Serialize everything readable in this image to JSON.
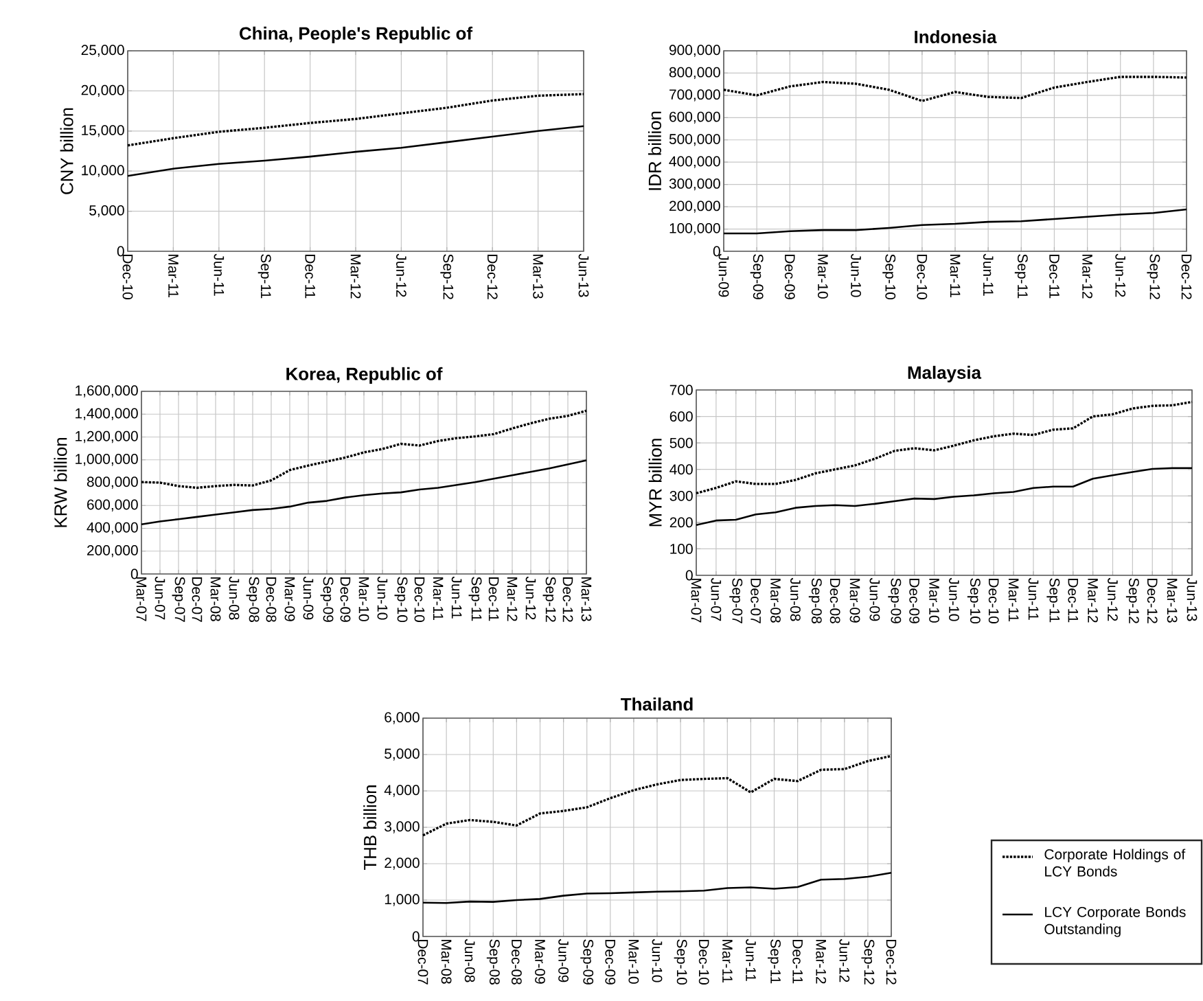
{
  "chart_data": [
    {
      "type": "line",
      "title": "China, People's Republic of",
      "ylabel": "CNY billion",
      "categories": [
        "Dec-10",
        "Mar-11",
        "Jun-11",
        "Sep-11",
        "Dec-11",
        "Mar-12",
        "Jun-12",
        "Sep-12",
        "Dec-12",
        "Mar-13",
        "Jun-13"
      ],
      "ylim": [
        0,
        25000
      ],
      "yticks": [
        0,
        {
          "value": 5000,
          "label": "5,000"
        },
        {
          "value": 10000,
          "label": "10,000"
        },
        {
          "value": 15000,
          "label": "15,000"
        },
        {
          "value": 20000,
          "label": "20,000"
        },
        {
          "value": 25000,
          "label": "25,000"
        }
      ],
      "grid": true,
      "series": [
        {
          "color": "#000000",
          "line_style": "dotted",
          "values": [
            13200,
            14100,
            14900,
            15400,
            16000,
            16500,
            17200,
            17900,
            18800,
            19400,
            19600
          ]
        },
        {
          "color": "#000000",
          "line_style": "solid",
          "values": [
            9400,
            10300,
            10900,
            11300,
            11800,
            12400,
            12900,
            13600,
            14300,
            15000,
            15600
          ]
        }
      ]
    },
    {
      "type": "line",
      "title": "Indonesia",
      "ylabel": "IDR billion",
      "categories": [
        "Jun-09",
        "Sep-09",
        "Dec-09",
        "Mar-10",
        "Jun-10",
        "Sep-10",
        "Dec-10",
        "Mar-11",
        "Jun-11",
        "Sep-11",
        "Dec-11",
        "Mar-12",
        "Jun-12",
        "Sep-12",
        "Dec-12"
      ],
      "ylim": [
        0,
        900000
      ],
      "yticks": [
        0,
        {
          "value": 100000,
          "label": "100,000"
        },
        {
          "value": 200000,
          "label": "200,000"
        },
        {
          "value": 300000,
          "label": "300,000"
        },
        {
          "value": 400000,
          "label": "400,000"
        },
        {
          "value": 500000,
          "label": "500,000"
        },
        {
          "value": 600000,
          "label": "600,000"
        },
        {
          "value": 700000,
          "label": "700,000"
        },
        {
          "value": 800000,
          "label": "800,000"
        },
        {
          "value": 900000,
          "label": "900,000"
        }
      ],
      "grid": true,
      "series": [
        {
          "color": "#000000",
          "line_style": "dotted",
          "values": [
            725000,
            700000,
            740000,
            760000,
            752000,
            725000,
            675000,
            715000,
            693000,
            688000,
            735000,
            760000,
            783000,
            783000,
            780000
          ]
        },
        {
          "color": "#000000",
          "line_style": "solid",
          "values": [
            80000,
            80000,
            90000,
            95000,
            95000,
            105000,
            118000,
            123000,
            132000,
            135000,
            145000,
            155000,
            165000,
            172000,
            188000
          ]
        }
      ]
    },
    {
      "type": "line",
      "title": "Korea, Republic of",
      "ylabel": "KRW billion",
      "categories": [
        "Mar-07",
        "Jun-07",
        "Sep-07",
        "Dec-07",
        "Mar-08",
        "Jun-08",
        "Sep-08",
        "Dec-08",
        "Mar-09",
        "Jun-09",
        "Sep-09",
        "Dec-09",
        "Mar-10",
        "Jun-10",
        "Sep-10",
        "Dec-10",
        "Mar-11",
        "Jun-11",
        "Sep-11",
        "Dec-11",
        "Mar-12",
        "Jun-12",
        "Sep-12",
        "Dec-12",
        "Mar-13"
      ],
      "ylim": [
        0,
        1600000
      ],
      "yticks": [
        0,
        {
          "value": 200000,
          "label": "200,000"
        },
        {
          "value": 400000,
          "label": "400,000"
        },
        {
          "value": 600000,
          "label": "600,000"
        },
        {
          "value": 800000,
          "label": "800,000"
        },
        {
          "value": 1000000,
          "label": "1,000,000"
        },
        {
          "value": 1200000,
          "label": "1,200,000"
        },
        {
          "value": 1400000,
          "label": "1,400,000"
        },
        {
          "value": 1600000,
          "label": "1,600,000"
        }
      ],
      "grid": true,
      "series": [
        {
          "color": "#000000",
          "line_style": "dotted",
          "values": [
            805000,
            800000,
            770000,
            755000,
            770000,
            780000,
            775000,
            820000,
            910000,
            950000,
            985000,
            1020000,
            1065000,
            1095000,
            1140000,
            1125000,
            1165000,
            1190000,
            1205000,
            1225000,
            1275000,
            1320000,
            1360000,
            1385000,
            1430000
          ]
        },
        {
          "color": "#000000",
          "line_style": "solid",
          "values": [
            435000,
            460000,
            480000,
            500000,
            520000,
            540000,
            560000,
            570000,
            590000,
            625000,
            640000,
            670000,
            690000,
            705000,
            715000,
            740000,
            755000,
            780000,
            805000,
            835000,
            865000,
            895000,
            925000,
            960000,
            995000
          ]
        }
      ]
    },
    {
      "type": "line",
      "title": "Malaysia",
      "ylabel": "MYR billion",
      "categories": [
        "Mar-07",
        "Jun-07",
        "Sep-07",
        "Dec-07",
        "Mar-08",
        "Jun-08",
        "Sep-08",
        "Dec-08",
        "Mar-09",
        "Jun-09",
        "Sep-09",
        "Dec-09",
        "Mar-10",
        "Jun-10",
        "Sep-10",
        "Dec-10",
        "Mar-11",
        "Jun-11",
        "Sep-11",
        "Dec-11",
        "Mar-12",
        "Jun-12",
        "Sep-12",
        "Dec-12",
        "Mar-13",
        "Jun-13"
      ],
      "ylim": [
        0,
        700
      ],
      "yticks": [
        0,
        100,
        200,
        300,
        400,
        500,
        600,
        700
      ],
      "grid": true,
      "series": [
        {
          "color": "#000000",
          "line_style": "dotted",
          "values": [
            310,
            330,
            355,
            345,
            345,
            360,
            385,
            400,
            415,
            440,
            470,
            480,
            472,
            490,
            510,
            525,
            535,
            530,
            550,
            555,
            600,
            608,
            630,
            640,
            642,
            655
          ]
        },
        {
          "color": "#000000",
          "line_style": "solid",
          "values": [
            190,
            207,
            210,
            230,
            238,
            255,
            262,
            265,
            262,
            270,
            280,
            290,
            288,
            297,
            302,
            310,
            315,
            330,
            335,
            335,
            365,
            378,
            390,
            402,
            405,
            405
          ]
        }
      ]
    },
    {
      "type": "line",
      "title": "Thailand",
      "ylabel": "THB billion",
      "categories": [
        "Dec-07",
        "Mar-08",
        "Jun-08",
        "Sep-08",
        "Dec-08",
        "Mar-09",
        "Jun-09",
        "Sep-09",
        "Dec-09",
        "Mar-10",
        "Jun-10",
        "Sep-10",
        "Dec-10",
        "Mar-11",
        "Jun-11",
        "Sep-11",
        "Dec-11",
        "Mar-12",
        "Jun-12",
        "Sep-12",
        "Dec-12"
      ],
      "ylim": [
        0,
        6000
      ],
      "yticks": [
        0,
        {
          "value": 1000,
          "label": "1,000"
        },
        {
          "value": 2000,
          "label": "2,000"
        },
        {
          "value": 3000,
          "label": "3,000"
        },
        {
          "value": 4000,
          "label": "4,000"
        },
        {
          "value": 5000,
          "label": "5,000"
        },
        {
          "value": 6000,
          "label": "6,000"
        }
      ],
      "grid": true,
      "legend": "right",
      "series": [
        {
          "name": "Corporate Holdings of LCY Bonds",
          "color": "#000000",
          "line_style": "dotted",
          "values": [
            2780,
            3100,
            3200,
            3150,
            3050,
            3380,
            3450,
            3550,
            3800,
            4020,
            4180,
            4300,
            4330,
            4350,
            3960,
            4330,
            4270,
            4580,
            4600,
            4820,
            4960
          ]
        },
        {
          "name": "LCY Corporate Bonds Outstanding",
          "color": "#000000",
          "line_style": "solid",
          "values": [
            930,
            920,
            960,
            950,
            1000,
            1030,
            1120,
            1180,
            1190,
            1210,
            1230,
            1240,
            1260,
            1330,
            1350,
            1310,
            1360,
            1560,
            1580,
            1640,
            1750
          ]
        }
      ]
    }
  ]
}
